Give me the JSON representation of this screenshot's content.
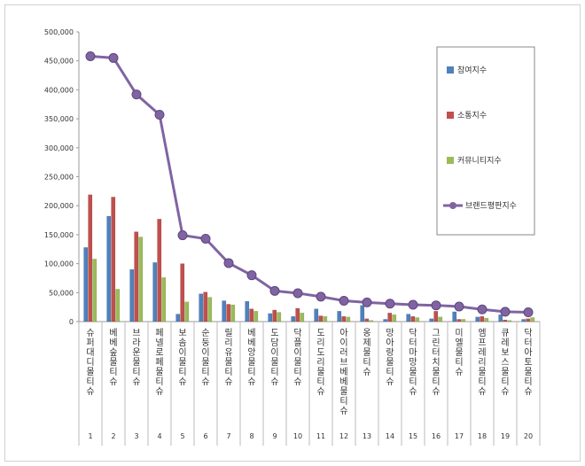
{
  "chart_data": {
    "type": "bar",
    "title": "",
    "xlabel": "",
    "ylabel": "",
    "ylim": [
      0,
      500000
    ],
    "yticks": [
      0,
      50000,
      100000,
      150000,
      200000,
      250000,
      300000,
      350000,
      400000,
      450000,
      500000
    ],
    "ytick_labels": [
      "0",
      "50,000",
      "100,000",
      "150,000",
      "200,000",
      "250,000",
      "300,000",
      "350,000",
      "400,000",
      "450,000",
      "500,000"
    ],
    "grid": false,
    "legend_position": "right",
    "categories": [
      "1",
      "2",
      "3",
      "4",
      "5",
      "6",
      "7",
      "8",
      "9",
      "10",
      "11",
      "12",
      "13",
      "14",
      "15",
      "16",
      "17",
      "18",
      "19",
      "20"
    ],
    "category_names": [
      "슈퍼대디 몰티슈",
      "베베숲 물티슈",
      "브라운 물티슈",
      "페넬로페 물티슈",
      "보솜이 물티슈",
      "순둥이 물티슈",
      "릴리유 물티슈",
      "베베앙 물티슈",
      "도담이 물티슈",
      "닥플이 물티슈",
      "도리도리 물티슈",
      "아이러브베베 물티슈",
      "옹제 물티슈",
      "망아랑 물티슈",
      "닥터마망 물티슈",
      "그린터치 물티슈",
      "미엘 물티슈",
      "엠프레리 물티슈",
      "큐레보스 물티슈",
      "닥터아토 물티슈"
    ],
    "series": [
      {
        "name": "참여지수",
        "type": "bar",
        "color": "#4f81bd",
        "values": [
          128000,
          182000,
          90000,
          102000,
          13000,
          48000,
          36000,
          35000,
          14000,
          9000,
          22000,
          18000,
          28000,
          4000,
          13000,
          5000,
          17000,
          8000,
          12000,
          4000
        ]
      },
      {
        "name": "소통지수",
        "type": "bar",
        "color": "#c0504d",
        "values": [
          219000,
          215000,
          155000,
          177000,
          100000,
          51000,
          30000,
          22000,
          20000,
          23000,
          10000,
          9000,
          5000,
          15000,
          9000,
          18000,
          4000,
          9000,
          3000,
          5000
        ]
      },
      {
        "name": "커뮤니티지수",
        "type": "bar",
        "color": "#9bbb59",
        "values": [
          108000,
          56000,
          146000,
          76000,
          34000,
          42000,
          29000,
          18000,
          16000,
          15000,
          9000,
          8000,
          2000,
          12000,
          7000,
          8000,
          4000,
          6000,
          2000,
          7000
        ]
      },
      {
        "name": "브랜드평판지수",
        "type": "line",
        "color": "#8064a2",
        "values": [
          458000,
          455000,
          392000,
          357000,
          149000,
          143000,
          101000,
          80000,
          53000,
          49000,
          43000,
          36000,
          33000,
          31000,
          29000,
          28000,
          26000,
          21000,
          17000,
          16000
        ]
      }
    ]
  }
}
